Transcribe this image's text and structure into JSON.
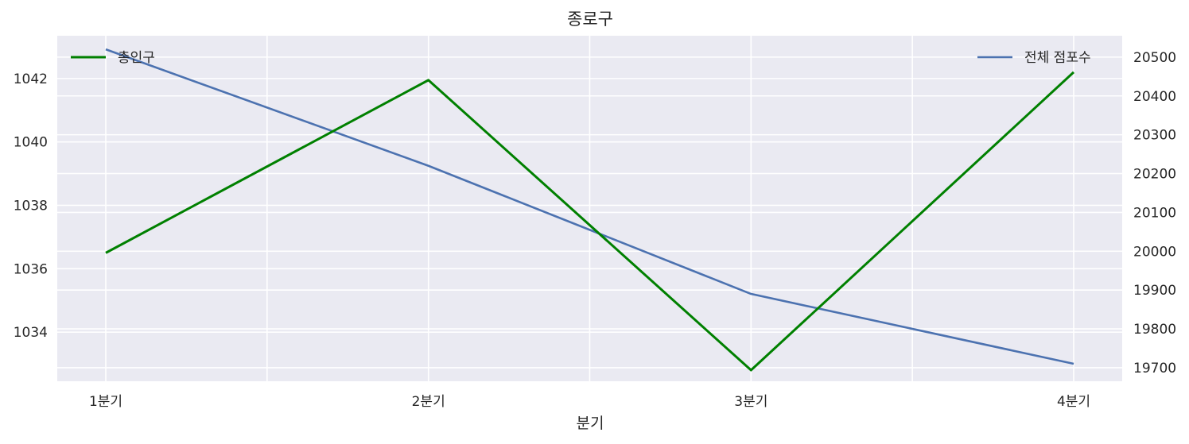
{
  "chart_data": {
    "type": "line",
    "title": "종로구",
    "xlabel": "분기",
    "categories": [
      "1분기",
      "2분기",
      "3분기",
      "4분기"
    ],
    "y_left": {
      "ylim": [
        1032.45,
        1043.35
      ],
      "ticks": [
        1034,
        1036,
        1038,
        1040,
        1042
      ]
    },
    "y_right": {
      "ylim": [
        19665,
        20555
      ],
      "ticks": [
        19700,
        19800,
        19900,
        20000,
        20100,
        20200,
        20300,
        20400,
        20500
      ]
    },
    "series": [
      {
        "name": "총인구",
        "axis": "left",
        "color": "#008000",
        "values": [
          1036.5,
          1041.95,
          1032.8,
          1042.2
        ]
      },
      {
        "name": "전체 점포수",
        "axis": "right",
        "color": "#4c72b0",
        "values": [
          20520,
          20220,
          19890,
          19710
        ]
      }
    ],
    "grid": true,
    "legend_left_position": "upper-left",
    "legend_right_position": "upper-right",
    "background": "#eaeaf2",
    "grid_color": "#ffffff"
  }
}
